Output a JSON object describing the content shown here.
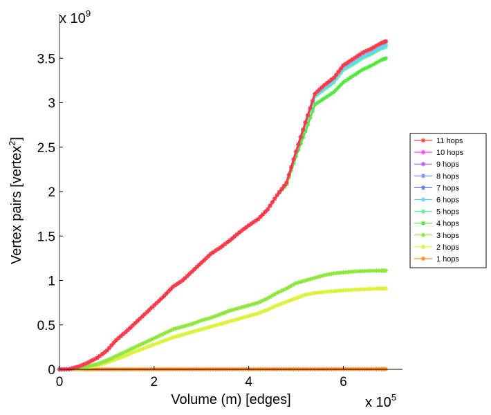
{
  "chart_data": {
    "type": "line",
    "title": "",
    "xlabel": "Volume (m) [edges]",
    "ylabel_main": "Vertex pairs [vertex",
    "ylabel_sup": "2",
    "ylabel_close": "]",
    "x_exponent_base": "x 10",
    "x_exponent_power": "5",
    "y_exponent_base": "x 10",
    "y_exponent_power": "9",
    "xlim": [
      0,
      7.25
    ],
    "ylim": [
      0,
      4.0
    ],
    "x_ticks": [
      0,
      2,
      4,
      6
    ],
    "x_tick_labels": [
      "0",
      "2",
      "4",
      "6"
    ],
    "y_ticks": [
      0,
      0.5,
      1,
      1.5,
      2,
      2.5,
      3,
      3.5
    ],
    "y_tick_labels": [
      "0",
      "0.5",
      "1",
      "1.5",
      "2",
      "2.5",
      "3",
      "3.5"
    ],
    "legend_position": "right",
    "x": [
      0,
      0.2,
      0.4,
      0.6,
      0.8,
      1.0,
      1.2,
      1.4,
      1.6,
      1.8,
      2.0,
      2.2,
      2.4,
      2.6,
      2.8,
      3.0,
      3.2,
      3.4,
      3.6,
      3.8,
      4.0,
      4.2,
      4.4,
      4.6,
      4.8,
      5.0,
      5.2,
      5.4,
      5.6,
      5.8,
      6.0,
      6.2,
      6.4,
      6.6,
      6.8,
      6.9
    ],
    "series": [
      {
        "name": "11 hops",
        "color": "#ff3c3c",
        "values": [
          0,
          0.0012,
          0.03,
          0.075,
          0.13,
          0.21,
          0.33,
          0.42,
          0.52,
          0.62,
          0.72,
          0.82,
          0.93,
          1.0,
          1.1,
          1.2,
          1.3,
          1.37,
          1.45,
          1.54,
          1.62,
          1.69,
          1.8,
          1.96,
          2.1,
          2.45,
          2.78,
          3.1,
          3.2,
          3.28,
          3.42,
          3.49,
          3.56,
          3.61,
          3.67,
          3.69
        ]
      },
      {
        "name": "10 hops",
        "color": "#ff40ff",
        "values": [
          0,
          0.0012,
          0.03,
          0.075,
          0.13,
          0.21,
          0.33,
          0.42,
          0.52,
          0.62,
          0.72,
          0.82,
          0.93,
          1.0,
          1.1,
          1.2,
          1.3,
          1.37,
          1.45,
          1.54,
          1.62,
          1.69,
          1.8,
          1.96,
          2.1,
          2.45,
          2.78,
          3.1,
          3.2,
          3.28,
          3.42,
          3.49,
          3.56,
          3.61,
          3.67,
          3.69
        ]
      },
      {
        "name": "9 hops",
        "color": "#b45aff",
        "values": [
          0,
          0.0012,
          0.03,
          0.075,
          0.13,
          0.21,
          0.33,
          0.42,
          0.52,
          0.62,
          0.72,
          0.82,
          0.93,
          1.0,
          1.1,
          1.2,
          1.3,
          1.37,
          1.45,
          1.54,
          1.62,
          1.69,
          1.8,
          1.96,
          2.1,
          2.45,
          2.78,
          3.1,
          3.2,
          3.28,
          3.42,
          3.49,
          3.56,
          3.61,
          3.67,
          3.69
        ]
      },
      {
        "name": "8 hops",
        "color": "#6a8cff",
        "values": [
          0,
          0.0012,
          0.03,
          0.075,
          0.13,
          0.21,
          0.33,
          0.42,
          0.52,
          0.62,
          0.72,
          0.82,
          0.93,
          1.0,
          1.1,
          1.2,
          1.3,
          1.37,
          1.45,
          1.54,
          1.62,
          1.69,
          1.8,
          1.96,
          2.1,
          2.45,
          2.78,
          3.1,
          3.2,
          3.28,
          3.42,
          3.49,
          3.56,
          3.61,
          3.67,
          3.69
        ]
      },
      {
        "name": "7 hops",
        "color": "#5a6eff",
        "values": [
          0,
          0.0012,
          0.03,
          0.075,
          0.13,
          0.21,
          0.33,
          0.42,
          0.52,
          0.62,
          0.72,
          0.82,
          0.93,
          1.0,
          1.1,
          1.2,
          1.3,
          1.37,
          1.45,
          1.54,
          1.62,
          1.69,
          1.8,
          1.96,
          2.1,
          2.45,
          2.78,
          3.1,
          3.2,
          3.28,
          3.42,
          3.49,
          3.56,
          3.61,
          3.67,
          3.69
        ]
      },
      {
        "name": "6 hops",
        "color": "#64d2ff",
        "values": [
          0,
          0.0012,
          0.03,
          0.075,
          0.13,
          0.21,
          0.33,
          0.42,
          0.52,
          0.62,
          0.72,
          0.82,
          0.93,
          1.0,
          1.1,
          1.2,
          1.3,
          1.37,
          1.45,
          1.54,
          1.62,
          1.69,
          1.8,
          1.96,
          2.1,
          2.45,
          2.77,
          3.08,
          3.17,
          3.25,
          3.39,
          3.45,
          3.52,
          3.57,
          3.63,
          3.65
        ]
      },
      {
        "name": "5 hops",
        "color": "#5aef9a",
        "values": [
          0,
          0.0012,
          0.03,
          0.075,
          0.13,
          0.21,
          0.33,
          0.42,
          0.52,
          0.62,
          0.72,
          0.82,
          0.93,
          1.0,
          1.1,
          1.2,
          1.3,
          1.37,
          1.45,
          1.54,
          1.62,
          1.69,
          1.8,
          1.96,
          2.1,
          2.44,
          2.76,
          3.07,
          3.15,
          3.23,
          3.37,
          3.43,
          3.5,
          3.55,
          3.61,
          3.63
        ]
      },
      {
        "name": "4 hops",
        "color": "#50e63c",
        "values": [
          0,
          0.0012,
          0.03,
          0.075,
          0.13,
          0.21,
          0.33,
          0.42,
          0.52,
          0.62,
          0.72,
          0.82,
          0.93,
          1.0,
          1.1,
          1.2,
          1.3,
          1.37,
          1.45,
          1.54,
          1.62,
          1.69,
          1.8,
          1.96,
          2.08,
          2.4,
          2.68,
          2.98,
          3.05,
          3.12,
          3.23,
          3.3,
          3.37,
          3.42,
          3.48,
          3.5
        ]
      },
      {
        "name": "3 hops",
        "color": "#8ce63c",
        "values": [
          0,
          0.0004,
          0.012,
          0.032,
          0.06,
          0.1,
          0.15,
          0.2,
          0.25,
          0.3,
          0.35,
          0.4,
          0.45,
          0.48,
          0.51,
          0.55,
          0.58,
          0.62,
          0.66,
          0.69,
          0.72,
          0.75,
          0.8,
          0.86,
          0.91,
          0.97,
          1.0,
          1.03,
          1.06,
          1.08,
          1.09,
          1.1,
          1.105,
          1.11,
          1.11,
          1.11
        ]
      },
      {
        "name": "2 hops",
        "color": "#dcf03c",
        "values": [
          0,
          0.0003,
          0.008,
          0.024,
          0.045,
          0.075,
          0.115,
          0.155,
          0.2,
          0.24,
          0.28,
          0.32,
          0.36,
          0.39,
          0.42,
          0.45,
          0.48,
          0.51,
          0.54,
          0.57,
          0.6,
          0.63,
          0.67,
          0.72,
          0.76,
          0.8,
          0.84,
          0.86,
          0.87,
          0.88,
          0.89,
          0.895,
          0.9,
          0.905,
          0.91,
          0.91
        ]
      },
      {
        "name": "1 hops",
        "color": "#ff8c28",
        "values": [
          0,
          0.0001,
          0.0002,
          0.0003,
          0.0004,
          0.0005,
          0.0006,
          0.0007,
          0.0008,
          0.0009,
          0.001,
          0.0011,
          0.0012,
          0.0013,
          0.0014,
          0.0015,
          0.0016,
          0.0017,
          0.0018,
          0.0019,
          0.002,
          0.0021,
          0.0022,
          0.0023,
          0.0024,
          0.0025,
          0.0026,
          0.0027,
          0.0028,
          0.0029,
          0.003,
          0.0031,
          0.0032,
          0.0033,
          0.0034,
          0.0035
        ]
      }
    ]
  }
}
